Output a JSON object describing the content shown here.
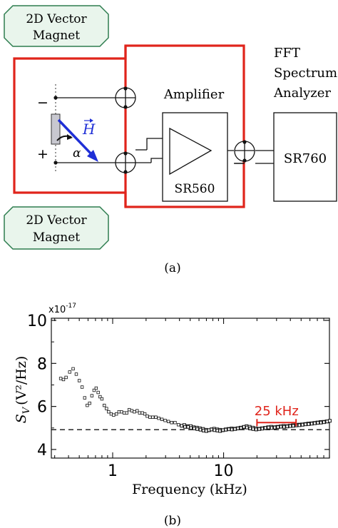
{
  "figure_a": {
    "magnet_top": [
      "2D Vector",
      "Magnet"
    ],
    "magnet_bottom": [
      "2D Vector",
      "Magnet"
    ],
    "amplifier_label": "Amplifier",
    "amplifier_model": "SR560",
    "analyzer_label": [
      "FFT",
      "Spectrum",
      "Analyzer"
    ],
    "analyzer_model": "SR760",
    "minus_sign": "−",
    "plus_sign": "+",
    "field_symbol": "H",
    "angle_symbol": "α",
    "caption": "(a)",
    "colors": {
      "wire_red": "#e0241b",
      "field_blue": "#1f2fd6",
      "magnet_fill": "#e9f5ec",
      "magnet_stroke": "#2e7d4f"
    }
  },
  "figure_b": {
    "caption": "(b)",
    "annotation": "25 kHz",
    "annotation_color": "#e0241b",
    "exponent_label_base": "x10",
    "exponent_label_power": "-17"
  },
  "chart_data": {
    "type": "scatter",
    "x_scale": "log",
    "xlabel": "Frequency (kHz)",
    "ylabel": "S_V (V²/Hz)",
    "ylabel_main": "S",
    "ylabel_sub": "V",
    "ylabel_units": "(V²/Hz)",
    "xlim": [
      0.28,
      90
    ],
    "ylim": [
      3.6,
      10.1
    ],
    "x_ticks": [
      1,
      10
    ],
    "x_tick_labels": [
      "1",
      "10"
    ],
    "y_ticks": [
      4,
      6,
      8,
      10
    ],
    "y_tick_labels": [
      "4",
      "6",
      "8",
      "10"
    ],
    "reference_line": 4.92,
    "annotation_span": [
      20,
      45
    ],
    "annotation_y": 5.25,
    "grid": false,
    "series": [
      {
        "x": [
          0.34,
          0.36,
          0.38,
          0.41,
          0.44,
          0.47,
          0.5,
          0.53,
          0.56,
          0.59,
          0.62,
          0.65,
          0.68,
          0.71,
          0.74,
          0.77,
          0.8,
          0.84,
          0.88,
          0.92,
          0.97,
          1.02,
          1.08,
          1.14,
          1.2,
          1.27,
          1.34,
          1.41,
          1.49,
          1.57,
          1.66,
          1.75,
          1.85,
          1.95,
          2.05,
          2.17,
          2.3,
          2.45,
          2.6,
          2.78,
          2.97,
          3.18,
          3.4,
          3.65,
          3.92,
          4.2,
          4.5,
          4.8,
          5.1,
          5.45,
          5.8,
          6.2,
          6.6,
          7.0,
          7.4,
          7.8,
          8.3,
          8.8,
          9.3,
          9.9,
          10.5,
          11.2,
          11.9,
          12.7,
          13.5,
          14.4,
          15.3,
          16.3,
          17.4,
          18.5,
          19.7,
          21.0,
          22.4,
          23.9,
          25.5,
          27.2,
          29.0,
          31.0,
          33.0,
          35.2,
          37.5,
          40.0,
          42.6,
          45.4,
          48.4,
          51.6,
          55.0,
          58.6,
          62.5,
          66.6,
          71.0,
          75.6,
          80.6,
          86.0
        ],
        "y": [
          7.3,
          7.25,
          7.35,
          7.6,
          7.75,
          7.5,
          7.2,
          6.9,
          6.4,
          6.05,
          6.15,
          6.5,
          6.75,
          6.85,
          6.65,
          6.45,
          6.35,
          6.05,
          5.9,
          5.75,
          5.65,
          5.6,
          5.65,
          5.75,
          5.75,
          5.7,
          5.7,
          5.85,
          5.8,
          5.75,
          5.8,
          5.7,
          5.7,
          5.65,
          5.55,
          5.5,
          5.5,
          5.5,
          5.45,
          5.4,
          5.35,
          5.3,
          5.25,
          5.25,
          5.15,
          5.1,
          5.05,
          5.05,
          5.0,
          4.98,
          4.95,
          4.92,
          4.88,
          4.86,
          4.9,
          4.93,
          4.9,
          4.88,
          4.86,
          4.9,
          4.92,
          4.94,
          4.93,
          4.95,
          4.98,
          5.0,
          5.05,
          5.02,
          4.98,
          4.95,
          4.93,
          4.95,
          4.97,
          5.0,
          5.02,
          5.0,
          5.02,
          5.04,
          5.06,
          5.05,
          5.07,
          5.09,
          5.1,
          5.12,
          5.13,
          5.15,
          5.17,
          5.18,
          5.2,
          5.22,
          5.24,
          5.25,
          5.27,
          5.3
        ]
      }
    ]
  }
}
